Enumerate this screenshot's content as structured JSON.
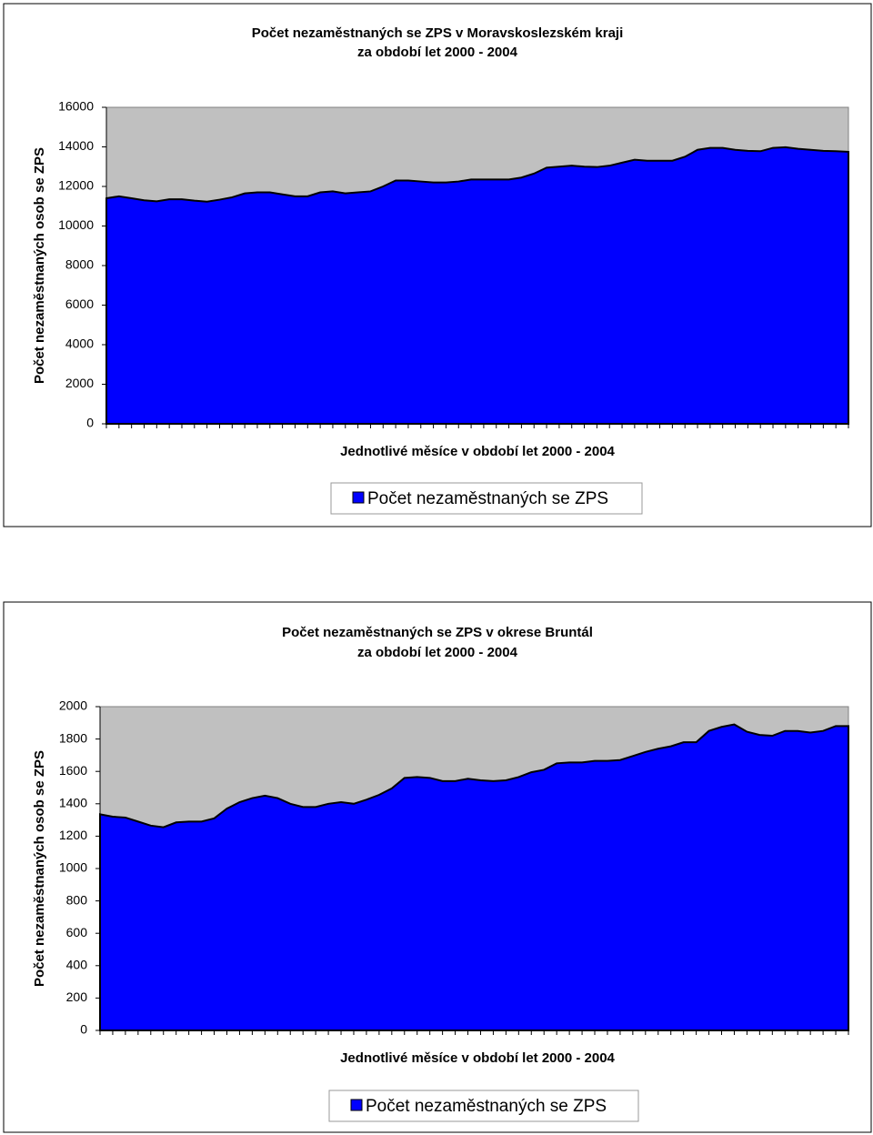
{
  "chart_data": [
    {
      "type": "area",
      "title": "Počet nezaměstnaných se ZPS v Moravskoslezském kraji",
      "subtitle": "za období let 2000 - 2004",
      "xlabel": "Jednotlivé měsíce v období let 2000 - 2004",
      "ylabel": "Počet nezaměstnaných osob se ZPS",
      "ylim": [
        0,
        16000
      ],
      "yticks": [
        0,
        2000,
        4000,
        6000,
        8000,
        10000,
        12000,
        14000,
        16000
      ],
      "plot_background": "#c0c0c0",
      "series": [
        {
          "name": "Počet nezaměstnaných se ZPS",
          "color": "#0000ff",
          "values": [
            11400,
            11500,
            11400,
            11300,
            11250,
            11350,
            11350,
            11280,
            11230,
            11330,
            11450,
            11650,
            11700,
            11700,
            11600,
            11500,
            11500,
            11700,
            11750,
            11650,
            11700,
            11750,
            12000,
            12300,
            12300,
            12250,
            12200,
            12200,
            12250,
            12350,
            12350,
            12350,
            12350,
            12450,
            12650,
            12950,
            13000,
            13050,
            13000,
            12980,
            13050,
            13200,
            13350,
            13300,
            13300,
            13300,
            13500,
            13850,
            13950,
            13950,
            13850,
            13800,
            13780,
            13950,
            13980,
            13900,
            13850,
            13800,
            13780,
            13750
          ]
        }
      ]
    },
    {
      "type": "area",
      "title": "Počet nezaměstnaných se ZPS v okrese Bruntál",
      "subtitle": "za období let 2000 - 2004",
      "xlabel": "Jednotlivé měsíce v období let 2000 - 2004",
      "ylabel": "Počet nezaměstnaných osob se ZPS",
      "ylim": [
        0,
        2000
      ],
      "yticks": [
        0,
        200,
        400,
        600,
        800,
        1000,
        1200,
        1400,
        1600,
        1800,
        2000
      ],
      "plot_background": "#c0c0c0",
      "series": [
        {
          "name": "Počet nezaměstnaných se ZPS",
          "color": "#0000ff",
          "values": [
            1335,
            1320,
            1315,
            1290,
            1265,
            1255,
            1285,
            1290,
            1290,
            1310,
            1370,
            1410,
            1435,
            1450,
            1435,
            1400,
            1380,
            1380,
            1400,
            1410,
            1400,
            1425,
            1455,
            1495,
            1560,
            1565,
            1560,
            1540,
            1540,
            1555,
            1545,
            1540,
            1545,
            1565,
            1595,
            1610,
            1650,
            1655,
            1655,
            1665,
            1665,
            1670,
            1695,
            1720,
            1740,
            1755,
            1780,
            1780,
            1850,
            1875,
            1890,
            1845,
            1825,
            1820,
            1850,
            1850,
            1840,
            1850,
            1880,
            1880
          ]
        }
      ]
    }
  ]
}
